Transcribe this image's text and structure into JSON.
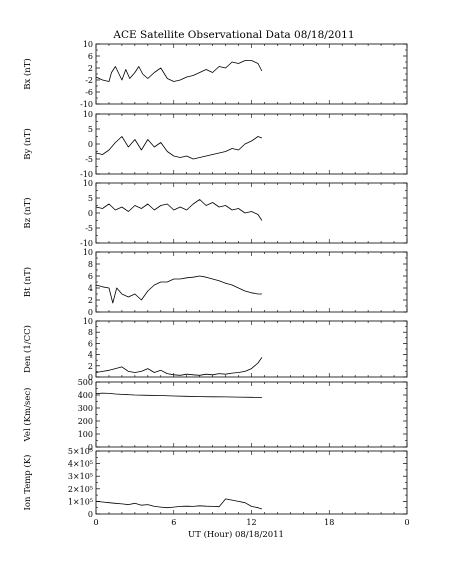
{
  "chart_data": {
    "type": "line",
    "title": "ACE Satellite Observational Data   08/18/2011",
    "xlabel": "UT (Hour)  08/18/2011",
    "xlim": [
      0,
      24
    ],
    "x_tick_labels": [
      "0",
      "6",
      "12",
      "18",
      "0"
    ],
    "panels": [
      {
        "ylabel": "Bx (nT)",
        "ylim": [
          -10,
          10
        ],
        "y_tick_labels": [
          "10",
          "6",
          "2",
          "-2",
          "-6",
          "-10"
        ],
        "x": [
          0,
          0.5,
          1,
          1.2,
          1.5,
          2,
          2.3,
          2.6,
          3,
          3.3,
          3.6,
          4,
          4.5,
          5,
          5.5,
          6,
          6.5,
          7,
          7.5,
          8,
          8.5,
          9,
          9.5,
          10,
          10.5,
          11,
          11.5,
          12,
          12.5,
          12.8
        ],
        "y": [
          -1,
          -2,
          -2.5,
          0.5,
          2.5,
          -2,
          1.5,
          -1.5,
          0.5,
          2.5,
          0,
          -1.5,
          0.5,
          2,
          -1.5,
          -2.5,
          -2,
          -1,
          -0.5,
          0.5,
          1.5,
          0.5,
          2.5,
          2,
          4,
          3.5,
          4.5,
          4.5,
          3.5,
          1
        ]
      },
      {
        "ylabel": "By (nT)",
        "ylim": [
          -10,
          10
        ],
        "y_tick_labels": [
          "10",
          "5",
          "0",
          "-5",
          "-10"
        ],
        "x": [
          0,
          0.5,
          1,
          1.5,
          2,
          2.5,
          3,
          3.5,
          4,
          4.5,
          5,
          5.5,
          6,
          6.5,
          7,
          7.5,
          8,
          8.5,
          9,
          9.5,
          10,
          10.5,
          11,
          11.5,
          12,
          12.5,
          12.8
        ],
        "y": [
          -3,
          -3.5,
          -2,
          0.5,
          2.5,
          -1,
          1.5,
          -2,
          1.5,
          -1,
          0.5,
          -2.5,
          -4,
          -4.5,
          -4,
          -5,
          -4.5,
          -4,
          -3.5,
          -3,
          -2.5,
          -1.5,
          -2,
          0,
          1,
          2.5,
          2
        ]
      },
      {
        "ylabel": "Bz (nT)",
        "ylim": [
          -10,
          10
        ],
        "y_tick_labels": [
          "10",
          "5",
          "0",
          "-5",
          "-10"
        ],
        "x": [
          0,
          0.5,
          1,
          1.5,
          2,
          2.5,
          3,
          3.5,
          4,
          4.5,
          5,
          5.5,
          6,
          6.5,
          7,
          7.5,
          8,
          8.5,
          9,
          9.5,
          10,
          10.5,
          11,
          11.5,
          12,
          12.5,
          12.8
        ],
        "y": [
          2,
          1.5,
          3,
          1,
          2,
          0.5,
          2.5,
          1.5,
          3,
          1,
          2.5,
          3,
          1,
          2,
          1,
          3,
          4.5,
          2.5,
          3.5,
          2,
          2.5,
          1,
          1.5,
          0,
          0.5,
          -0.5,
          -2.5
        ]
      },
      {
        "ylabel": "Bt (nT)",
        "ylim": [
          0,
          10
        ],
        "y_tick_labels": [
          "10",
          "8",
          "6",
          "4",
          "2",
          "0"
        ],
        "x": [
          0,
          0.5,
          1,
          1.3,
          1.6,
          2,
          2.5,
          3,
          3.5,
          4,
          4.5,
          5,
          5.5,
          6,
          6.5,
          7,
          7.5,
          8,
          8.5,
          9,
          9.5,
          10,
          10.5,
          11,
          11.5,
          12,
          12.5,
          12.8
        ],
        "y": [
          4.5,
          4.2,
          4,
          1.5,
          4,
          3,
          2.5,
          3,
          2,
          3.5,
          4.5,
          5,
          5,
          5.5,
          5.5,
          5.7,
          5.8,
          6,
          5.8,
          5.5,
          5.2,
          4.8,
          4.5,
          4,
          3.5,
          3.2,
          3,
          3
        ]
      },
      {
        "ylabel": "Den (1/CC)",
        "ylim": [
          0,
          10
        ],
        "y_tick_labels": [
          "10",
          "8",
          "6",
          "4",
          "2",
          "0"
        ],
        "x": [
          0,
          0.5,
          1,
          1.5,
          2,
          2.5,
          3,
          3.5,
          4,
          4.5,
          5,
          5.5,
          6,
          6.5,
          7,
          7.5,
          8,
          8.5,
          9,
          9.5,
          10,
          10.5,
          11,
          11.5,
          12,
          12.5,
          12.8
        ],
        "y": [
          0.8,
          1,
          1.2,
          1.5,
          1.8,
          1,
          0.8,
          1,
          1.5,
          0.8,
          1.2,
          0.6,
          0.4,
          0.3,
          0.5,
          0.4,
          0.3,
          0.5,
          0.4,
          0.6,
          0.5,
          0.7,
          0.8,
          1,
          1.5,
          2.5,
          3.5
        ]
      },
      {
        "ylabel": "Vel (Km/sec)",
        "ylim": [
          0,
          500
        ],
        "y_tick_labels": [
          "500",
          "400",
          "300",
          "200",
          "100",
          "0"
        ],
        "x": [
          0,
          0.5,
          1,
          1.5,
          2,
          3,
          4,
          5,
          6,
          7,
          8,
          9,
          10,
          11,
          12,
          12.8
        ],
        "y": [
          410,
          415,
          412,
          408,
          405,
          400,
          398,
          396,
          392,
          390,
          388,
          386,
          385,
          384,
          382,
          380
        ]
      },
      {
        "ylabel": "Ion Temp (K)",
        "ylim": [
          0,
          500000
        ],
        "y_tick_labels": [
          "5×10⁵",
          "4×10⁵",
          "3×10⁵",
          "2×10⁵",
          "1×10⁵",
          "0"
        ],
        "x": [
          0,
          0.5,
          1,
          1.5,
          2,
          2.5,
          3,
          3.5,
          4,
          4.5,
          5,
          5.5,
          6,
          6.5,
          7,
          7.5,
          8,
          8.5,
          9,
          9.5,
          10,
          10.5,
          11,
          11.5,
          12,
          12.5,
          12.8
        ],
        "y": [
          100000,
          95000,
          90000,
          85000,
          80000,
          75000,
          85000,
          70000,
          75000,
          60000,
          55000,
          50000,
          55000,
          60000,
          62000,
          60000,
          65000,
          62000,
          60000,
          58000,
          120000,
          110000,
          100000,
          90000,
          60000,
          50000,
          40000
        ]
      }
    ]
  }
}
